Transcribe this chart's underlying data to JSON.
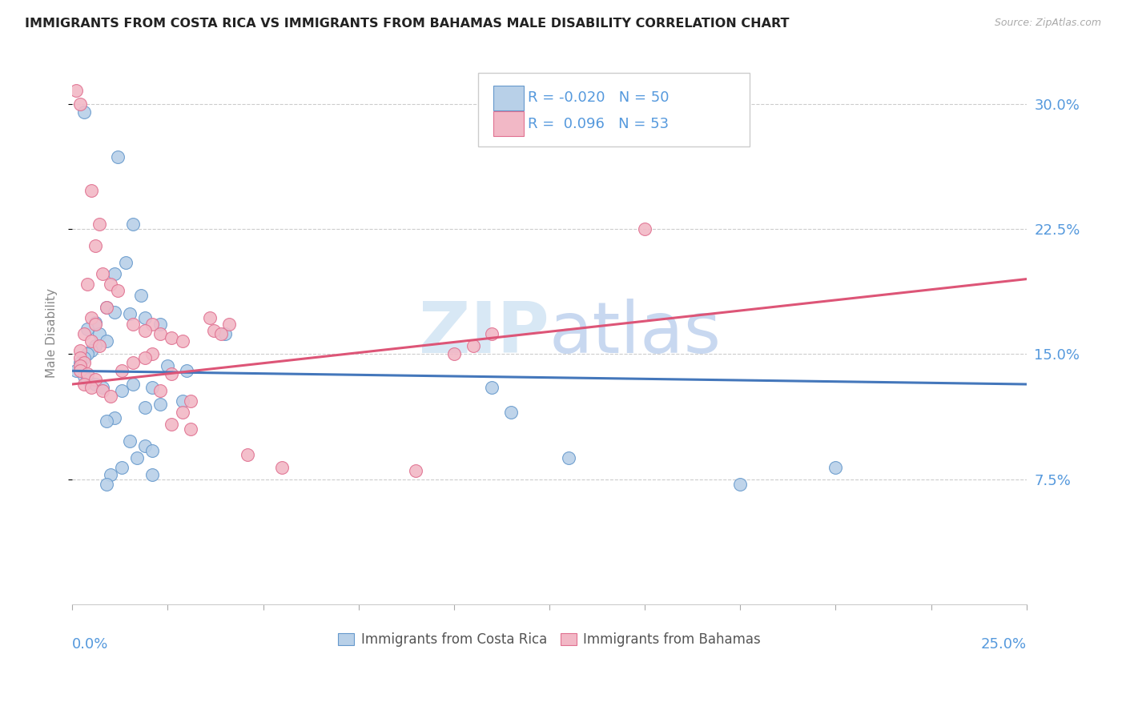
{
  "title": "IMMIGRANTS FROM COSTA RICA VS IMMIGRANTS FROM BAHAMAS MALE DISABILITY CORRELATION CHART",
  "source": "Source: ZipAtlas.com",
  "ylabel": "Male Disability",
  "ytick_labels": [
    "7.5%",
    "15.0%",
    "22.5%",
    "30.0%"
  ],
  "ytick_values": [
    0.075,
    0.15,
    0.225,
    0.3
  ],
  "xlim": [
    0.0,
    0.25
  ],
  "ylim": [
    0.0,
    0.325
  ],
  "legend": {
    "r1": "-0.020",
    "n1": "50",
    "r2": "0.096",
    "n2": "53"
  },
  "color_blue": "#B8D0E8",
  "color_pink": "#F2B8C6",
  "color_blue_edge": "#6699CC",
  "color_pink_edge": "#E07090",
  "color_blue_line": "#4477BB",
  "color_pink_line": "#DD5577",
  "color_axis_text": "#5599DD",
  "watermark_color": "#D8E8F5",
  "blue_points": [
    [
      0.003,
      0.295
    ],
    [
      0.012,
      0.268
    ],
    [
      0.016,
      0.228
    ],
    [
      0.014,
      0.205
    ],
    [
      0.011,
      0.198
    ],
    [
      0.018,
      0.185
    ],
    [
      0.009,
      0.178
    ],
    [
      0.011,
      0.175
    ],
    [
      0.015,
      0.174
    ],
    [
      0.019,
      0.172
    ],
    [
      0.006,
      0.169
    ],
    [
      0.023,
      0.168
    ],
    [
      0.004,
      0.165
    ],
    [
      0.007,
      0.162
    ],
    [
      0.009,
      0.158
    ],
    [
      0.006,
      0.155
    ],
    [
      0.005,
      0.152
    ],
    [
      0.004,
      0.15
    ],
    [
      0.003,
      0.148
    ],
    [
      0.002,
      0.145
    ],
    [
      0.002,
      0.142
    ],
    [
      0.001,
      0.14
    ],
    [
      0.003,
      0.137
    ],
    [
      0.004,
      0.135
    ],
    [
      0.006,
      0.132
    ],
    [
      0.008,
      0.13
    ],
    [
      0.013,
      0.128
    ],
    [
      0.016,
      0.132
    ],
    [
      0.021,
      0.13
    ],
    [
      0.025,
      0.143
    ],
    [
      0.03,
      0.14
    ],
    [
      0.029,
      0.122
    ],
    [
      0.023,
      0.12
    ],
    [
      0.019,
      0.118
    ],
    [
      0.011,
      0.112
    ],
    [
      0.009,
      0.11
    ],
    [
      0.015,
      0.098
    ],
    [
      0.019,
      0.095
    ],
    [
      0.021,
      0.092
    ],
    [
      0.017,
      0.088
    ],
    [
      0.013,
      0.082
    ],
    [
      0.01,
      0.078
    ],
    [
      0.009,
      0.072
    ],
    [
      0.021,
      0.078
    ],
    [
      0.11,
      0.13
    ],
    [
      0.13,
      0.088
    ],
    [
      0.175,
      0.072
    ],
    [
      0.2,
      0.082
    ],
    [
      0.115,
      0.115
    ],
    [
      0.04,
      0.162
    ]
  ],
  "pink_points": [
    [
      0.001,
      0.308
    ],
    [
      0.002,
      0.3
    ],
    [
      0.004,
      0.192
    ],
    [
      0.005,
      0.248
    ],
    [
      0.007,
      0.228
    ],
    [
      0.006,
      0.215
    ],
    [
      0.008,
      0.198
    ],
    [
      0.01,
      0.192
    ],
    [
      0.012,
      0.188
    ],
    [
      0.009,
      0.178
    ],
    [
      0.005,
      0.172
    ],
    [
      0.006,
      0.168
    ],
    [
      0.003,
      0.162
    ],
    [
      0.005,
      0.158
    ],
    [
      0.007,
      0.155
    ],
    [
      0.002,
      0.152
    ],
    [
      0.002,
      0.148
    ],
    [
      0.003,
      0.145
    ],
    [
      0.002,
      0.143
    ],
    [
      0.002,
      0.14
    ],
    [
      0.004,
      0.138
    ],
    [
      0.006,
      0.135
    ],
    [
      0.003,
      0.132
    ],
    [
      0.005,
      0.13
    ],
    [
      0.008,
      0.128
    ],
    [
      0.01,
      0.125
    ],
    [
      0.016,
      0.168
    ],
    [
      0.021,
      0.168
    ],
    [
      0.019,
      0.164
    ],
    [
      0.023,
      0.162
    ],
    [
      0.026,
      0.16
    ],
    [
      0.029,
      0.158
    ],
    [
      0.021,
      0.15
    ],
    [
      0.019,
      0.148
    ],
    [
      0.016,
      0.145
    ],
    [
      0.013,
      0.14
    ],
    [
      0.026,
      0.138
    ],
    [
      0.023,
      0.128
    ],
    [
      0.031,
      0.122
    ],
    [
      0.029,
      0.115
    ],
    [
      0.026,
      0.108
    ],
    [
      0.031,
      0.105
    ],
    [
      0.036,
      0.172
    ],
    [
      0.041,
      0.168
    ],
    [
      0.037,
      0.164
    ],
    [
      0.039,
      0.162
    ],
    [
      0.09,
      0.08
    ],
    [
      0.046,
      0.09
    ],
    [
      0.11,
      0.162
    ],
    [
      0.105,
      0.155
    ],
    [
      0.1,
      0.15
    ],
    [
      0.055,
      0.082
    ],
    [
      0.15,
      0.225
    ]
  ]
}
